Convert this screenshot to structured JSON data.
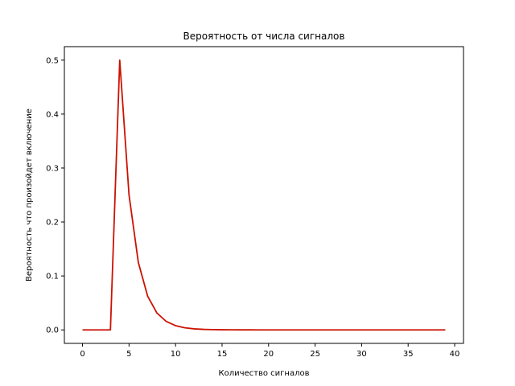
{
  "chart_data": {
    "type": "line",
    "title": "Вероятность от числа сигналов",
    "xlabel": "Количество сигналов",
    "ylabel": "Вероятность что произойдет включение",
    "xlim": [
      -1.95,
      40.95
    ],
    "ylim": [
      -0.025,
      0.525
    ],
    "xticks": [
      0,
      5,
      10,
      15,
      20,
      25,
      30,
      35,
      40
    ],
    "xtick_labels": [
      "0",
      "5",
      "10",
      "15",
      "20",
      "25",
      "30",
      "35",
      "40"
    ],
    "yticks": [
      0.0,
      0.1,
      0.2,
      0.3,
      0.4,
      0.5
    ],
    "ytick_labels": [
      "0.0",
      "0.1",
      "0.2",
      "0.3",
      "0.4",
      "0.5"
    ],
    "grid": false,
    "series": [
      {
        "color": "#cc1100",
        "x": [
          0,
          1,
          2,
          3,
          4,
          5,
          6,
          7,
          8,
          9,
          10,
          11,
          12,
          13,
          14,
          15,
          16,
          17,
          18,
          19,
          20,
          21,
          22,
          23,
          24,
          25,
          26,
          27,
          28,
          29,
          30,
          31,
          32,
          33,
          34,
          35,
          36,
          37,
          38,
          39
        ],
        "y": [
          0,
          0,
          0,
          0,
          0.5,
          0.25,
          0.125,
          0.0625,
          0.03125,
          0.015625,
          0.0078125,
          0.00390625,
          0.001953125,
          0.0009765625,
          0.00048828125,
          0.000244140625,
          0.0001220703125,
          6.103515625e-05,
          3.0517578125e-05,
          1.52587890625e-05,
          7.62939453125e-06,
          3.814697265625e-06,
          1.9073486328125e-06,
          9.5367431640625e-07,
          4.76837158203125e-07,
          2.384185791015625e-07,
          1.1920928955078125e-07,
          5.960464477539063e-08,
          2.9802322387695312e-08,
          1.4901161193847656e-08,
          7.450580596923828e-09,
          3.725290298461914e-09,
          1.862645149230957e-09,
          9.313225746154785e-10,
          4.656612873077393e-10,
          2.3283064365386963e-10,
          1.1641532182693481e-10,
          5.820766091346741e-11,
          2.9103830456733704e-11,
          1.4551915228366852e-11
        ]
      }
    ]
  }
}
